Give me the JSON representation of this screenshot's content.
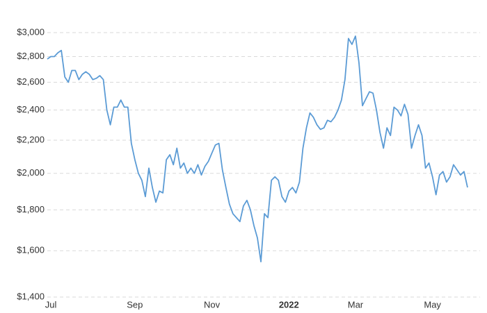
{
  "chart_data": {
    "type": "line",
    "categories": [
      null,
      "Jul",
      null,
      null,
      null,
      null,
      null,
      null,
      null,
      null,
      null,
      null,
      null,
      null,
      null,
      null,
      null,
      null,
      null,
      null,
      null,
      null,
      null,
      null,
      null,
      "Sep",
      null,
      null,
      null,
      null,
      null,
      null,
      null,
      null,
      null,
      null,
      null,
      null,
      null,
      null,
      null,
      null,
      null,
      null,
      null,
      null,
      null,
      "Nov",
      null,
      null,
      null,
      null,
      null,
      null,
      null,
      null,
      null,
      null,
      null,
      null,
      null,
      null,
      null,
      null,
      null,
      null,
      null,
      null,
      null,
      "2022",
      null,
      null,
      null,
      null,
      null,
      null,
      null,
      null,
      null,
      null,
      null,
      null,
      null,
      null,
      null,
      null,
      null,
      null,
      "Mar",
      null,
      null,
      null,
      null,
      null,
      null,
      null,
      null,
      null,
      null,
      null,
      null,
      null,
      null,
      null,
      null,
      null,
      null,
      null,
      null,
      null,
      "May",
      null,
      null,
      null,
      null,
      null,
      null,
      null,
      null,
      null,
      null
    ],
    "series": [
      {
        "color": "#5b9bd5",
        "values": [
          2780,
          2800,
          2800,
          2830,
          2850,
          2640,
          2600,
          2690,
          2690,
          2620,
          2660,
          2680,
          2660,
          2620,
          2630,
          2650,
          2620,
          2400,
          2300,
          2420,
          2420,
          2470,
          2420,
          2420,
          2180,
          2080,
          2000,
          1960,
          1870,
          2030,
          1920,
          1840,
          1900,
          1890,
          2080,
          2110,
          2050,
          2150,
          2030,
          2060,
          2000,
          2030,
          2000,
          2050,
          1990,
          2040,
          2070,
          2120,
          2170,
          2180,
          2020,
          1920,
          1830,
          1780,
          1760,
          1740,
          1820,
          1850,
          1800,
          1720,
          1660,
          1550,
          1780,
          1760,
          1960,
          1980,
          1960,
          1870,
          1840,
          1900,
          1920,
          1890,
          1950,
          2150,
          2280,
          2380,
          2350,
          2300,
          2270,
          2280,
          2330,
          2320,
          2350,
          2400,
          2470,
          2620,
          2950,
          2900,
          2970,
          2750,
          2430,
          2480,
          2530,
          2520,
          2400,
          2250,
          2150,
          2280,
          2230,
          2420,
          2400,
          2360,
          2440,
          2370,
          2150,
          2230,
          2300,
          2230,
          2030,
          2060,
          1980,
          1880,
          1990,
          2010,
          1950,
          1980,
          2050,
          2020,
          1990,
          2010,
          1920
        ]
      }
    ],
    "ylim": [
      1400,
      3000
    ],
    "yticks": [
      {
        "value": 1400,
        "label": "$1,400"
      },
      {
        "value": 1600,
        "label": "$1,600"
      },
      {
        "value": 1800,
        "label": "$1,800"
      },
      {
        "value": 2000,
        "label": "$2,000"
      },
      {
        "value": 2200,
        "label": "$2,200"
      },
      {
        "value": 2400,
        "label": "$2,400"
      },
      {
        "value": 2600,
        "label": "$2,600"
      },
      {
        "value": 2800,
        "label": "$2,800"
      },
      {
        "value": 3000,
        "label": "$3,000"
      }
    ],
    "log_scale": true,
    "grid": true
  }
}
